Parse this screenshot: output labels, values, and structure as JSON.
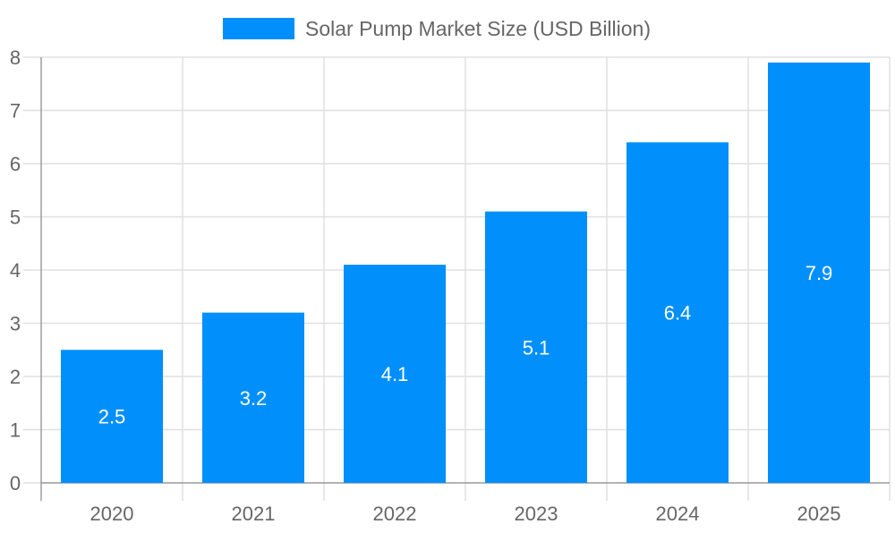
{
  "chart_data": {
    "type": "bar",
    "categories": [
      "2020",
      "2021",
      "2022",
      "2023",
      "2024",
      "2025"
    ],
    "series": [
      {
        "name": "Solar Pump Market Size (USD Billion)",
        "values": [
          2.5,
          3.2,
          4.1,
          5.1,
          6.4,
          7.9
        ]
      }
    ],
    "data_labels": [
      "2.5",
      "3.2",
      "4.1",
      "5.1",
      "6.4",
      "7.9"
    ],
    "title": "",
    "xlabel": "",
    "ylabel": "",
    "ylim": [
      0,
      8
    ],
    "yticks": [
      "0",
      "1",
      "2",
      "3",
      "4",
      "5",
      "6",
      "7",
      "8"
    ],
    "grid": true,
    "legend_position": "top",
    "colors": {
      "bar": "#008ffb",
      "grid": "#e0e0e0",
      "axis": "#9e9e9e",
      "text": "#666666",
      "label": "#ffffff"
    }
  }
}
